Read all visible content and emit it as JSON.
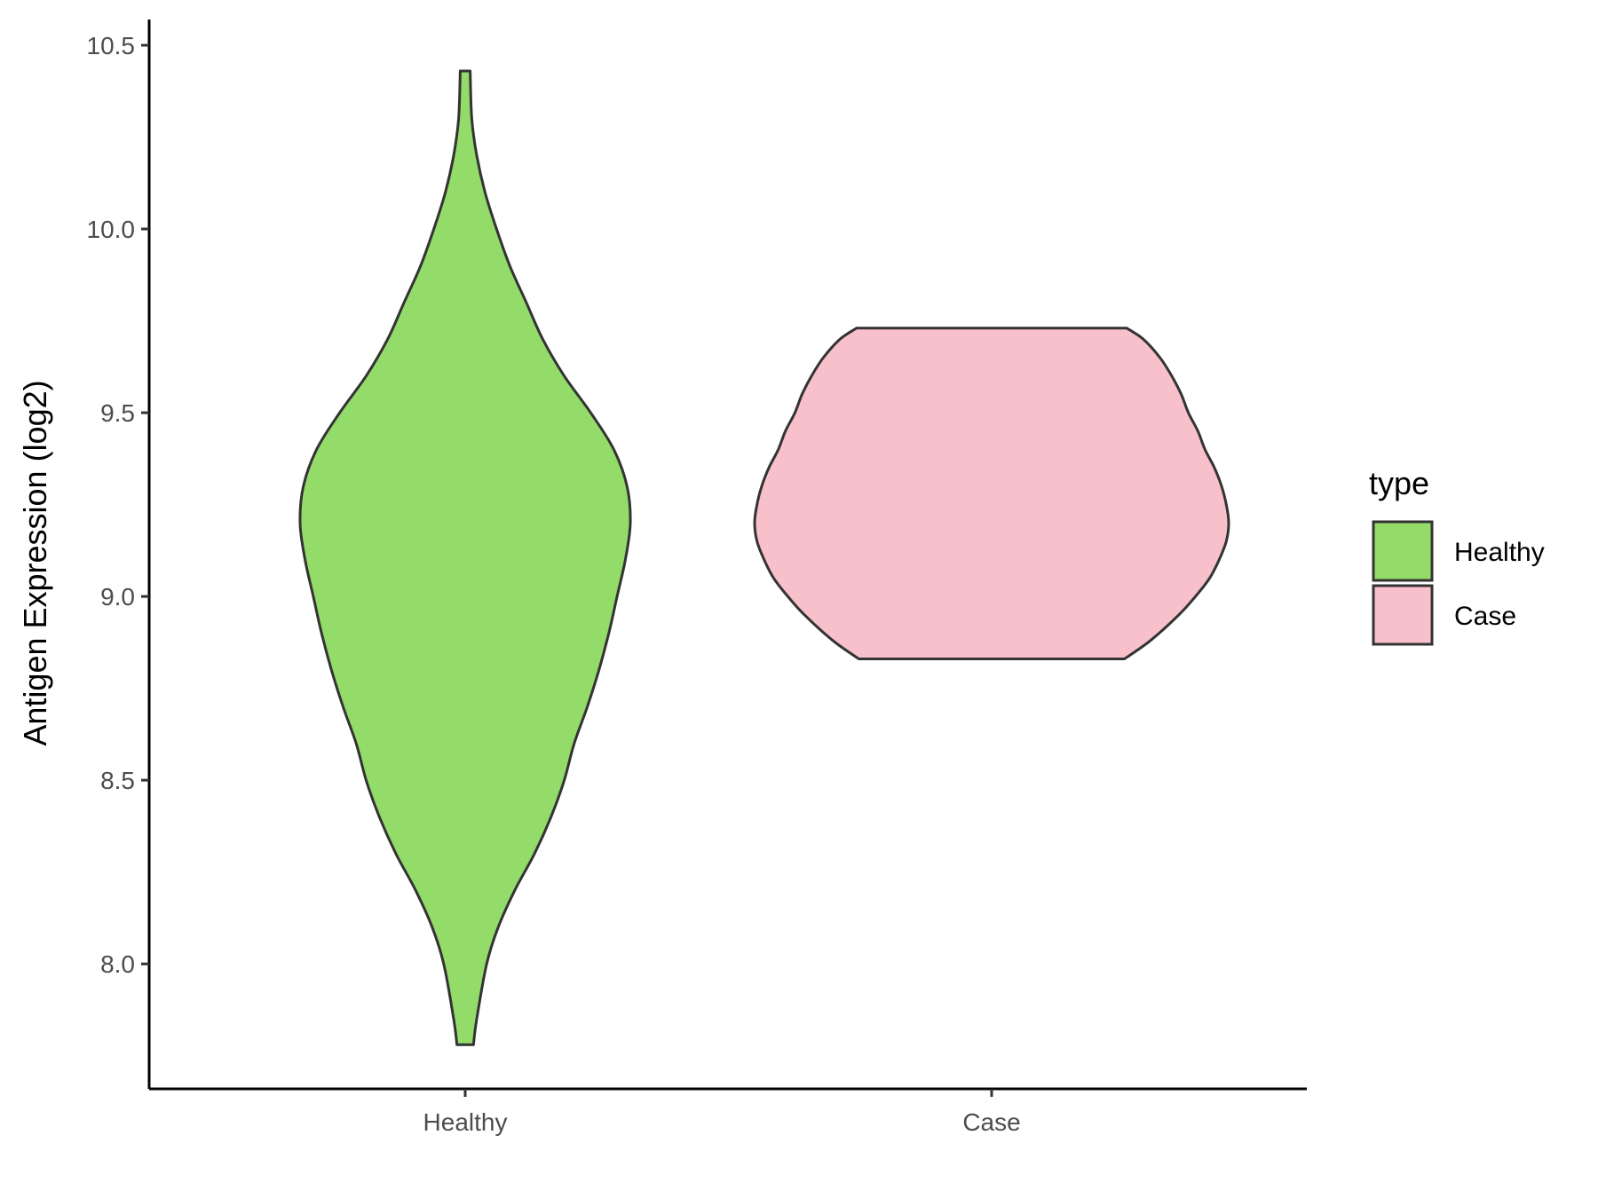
{
  "chart_data": {
    "type": "violin",
    "title": "",
    "xlabel": "",
    "ylabel": "Antigen Expression (log2)",
    "ylim": [
      7.66,
      10.57
    ],
    "yticks": [
      {
        "value": 8.0,
        "label": "8.0"
      },
      {
        "value": 8.5,
        "label": "8.5"
      },
      {
        "value": 9.0,
        "label": "9.0"
      },
      {
        "value": 9.5,
        "label": "9.5"
      },
      {
        "value": 10.0,
        "label": "10.0"
      },
      {
        "value": 10.5,
        "label": "10.5"
      }
    ],
    "categories": [
      "Healthy",
      "Case"
    ],
    "grid": false,
    "legend": {
      "title": "type",
      "position": "right",
      "entries": [
        {
          "label": "Healthy",
          "color": "#93dc6a"
        },
        {
          "label": "Case",
          "color": "#f8c0cb"
        }
      ]
    },
    "outline_color": "#333333",
    "series": [
      {
        "category": "Healthy",
        "color": "#93dc6a",
        "min": 7.78,
        "max": 10.43,
        "density_profile": [
          [
            7.78,
            0.05
          ],
          [
            7.85,
            0.07
          ],
          [
            8.0,
            0.13
          ],
          [
            8.1,
            0.2
          ],
          [
            8.2,
            0.3
          ],
          [
            8.3,
            0.42
          ],
          [
            8.4,
            0.52
          ],
          [
            8.5,
            0.6
          ],
          [
            8.6,
            0.66
          ],
          [
            8.7,
            0.74
          ],
          [
            8.8,
            0.81
          ],
          [
            8.9,
            0.87
          ],
          [
            9.0,
            0.92
          ],
          [
            9.1,
            0.97
          ],
          [
            9.2,
            1.0
          ],
          [
            9.3,
            0.98
          ],
          [
            9.4,
            0.9
          ],
          [
            9.5,
            0.76
          ],
          [
            9.6,
            0.6
          ],
          [
            9.7,
            0.47
          ],
          [
            9.8,
            0.37
          ],
          [
            9.9,
            0.27
          ],
          [
            10.0,
            0.19
          ],
          [
            10.1,
            0.12
          ],
          [
            10.2,
            0.07
          ],
          [
            10.3,
            0.04
          ],
          [
            10.43,
            0.03
          ]
        ]
      },
      {
        "category": "Case",
        "color": "#f8c0cb",
        "min": 8.83,
        "max": 9.73,
        "density_profile": [
          [
            8.83,
            0.56
          ],
          [
            8.88,
            0.67
          ],
          [
            8.95,
            0.79
          ],
          [
            9.0,
            0.86
          ],
          [
            9.05,
            0.92
          ],
          [
            9.1,
            0.96
          ],
          [
            9.15,
            0.99
          ],
          [
            9.2,
            1.0
          ],
          [
            9.25,
            0.99
          ],
          [
            9.3,
            0.97
          ],
          [
            9.35,
            0.94
          ],
          [
            9.4,
            0.9
          ],
          [
            9.45,
            0.87
          ],
          [
            9.5,
            0.83
          ],
          [
            9.55,
            0.8
          ],
          [
            9.6,
            0.76
          ],
          [
            9.65,
            0.71
          ],
          [
            9.7,
            0.64
          ],
          [
            9.73,
            0.57
          ]
        ]
      }
    ]
  }
}
